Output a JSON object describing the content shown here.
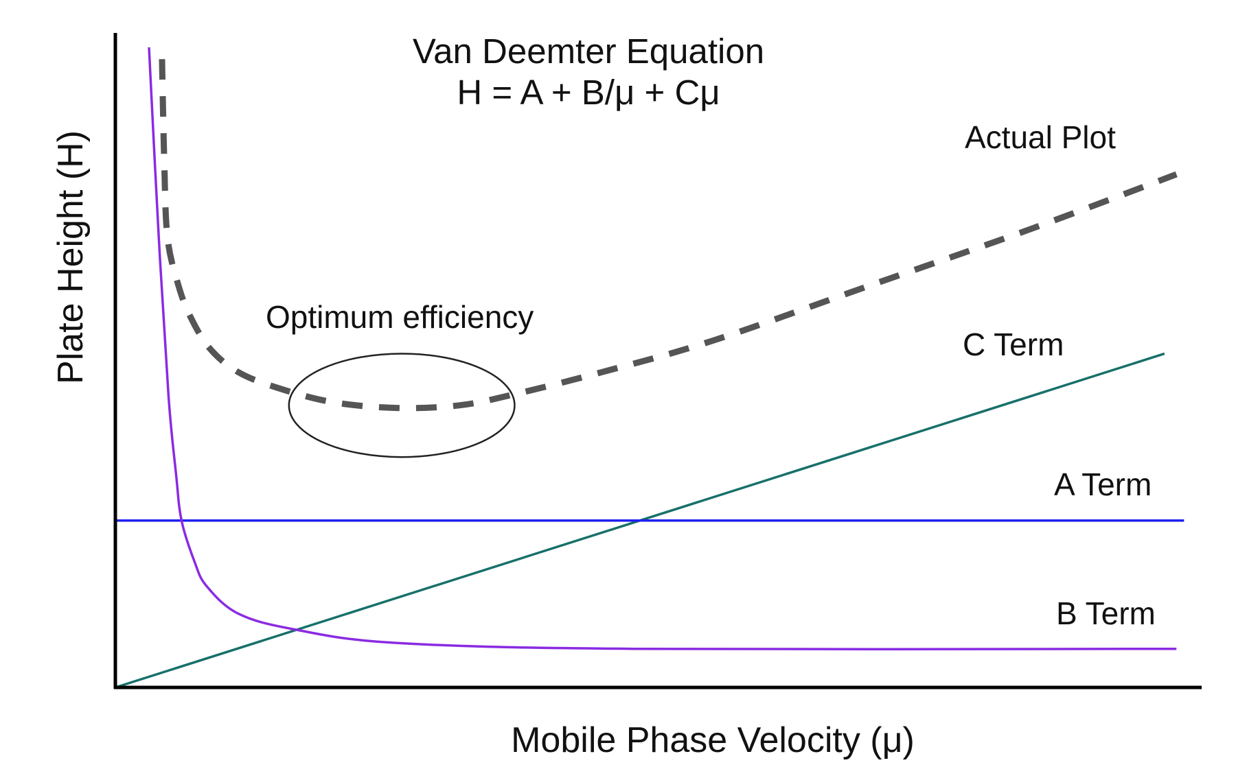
{
  "chart_data": {
    "type": "line",
    "title": "Van Deemter Equation",
    "subtitle": "H = A + B/μ + Cμ",
    "xlabel": "Mobile Phase Velocity (μ)",
    "ylabel": "Plate Height (H)",
    "xlim": [
      0,
      100
    ],
    "ylim": [
      0,
      100
    ],
    "grid": false,
    "ticks": false,
    "series": [
      {
        "name": "Actual Plot",
        "color": "#555555",
        "style": "dashed",
        "x": [
          4.3,
          4.5,
          4.8,
          5.8,
          6.9,
          8.7,
          11.3,
          14.9,
          20.0,
          25.9,
          31.7,
          36.8,
          44.9,
          55.1,
          69.7,
          84.3,
          97.8
        ],
        "y": [
          96.0,
          80.8,
          68.8,
          61.5,
          56.7,
          51.8,
          48.2,
          45.8,
          43.6,
          42.7,
          43.1,
          44.8,
          48.2,
          53.0,
          61.5,
          70.0,
          78.4
        ]
      },
      {
        "name": "C Term",
        "color": "#17706a",
        "style": "solid",
        "x": [
          0,
          96.7
        ],
        "y": [
          0,
          51.0
        ]
      },
      {
        "name": "A Term",
        "color": "#1f1fef",
        "style": "solid",
        "x": [
          0,
          98.5
        ],
        "y": [
          25.5,
          25.5
        ]
      },
      {
        "name": "B Term",
        "color": "#8a2be2",
        "style": "solid",
        "x": [
          3.1,
          4.0,
          4.9,
          5.6,
          6.1,
          7.3,
          8.4,
          11.3,
          16.4,
          25.9,
          47.8,
          97.8
        ],
        "y": [
          97.8,
          68.8,
          44.5,
          32.5,
          25.5,
          19.2,
          15.5,
          11.3,
          8.9,
          6.8,
          5.9,
          5.9
        ]
      }
    ],
    "annotations": [
      {
        "text": "Optimum efficiency",
        "shape": "ellipse",
        "center": [
          26.4,
          43.1
        ],
        "radii": [
          10.4,
          7.9
        ]
      }
    ]
  }
}
